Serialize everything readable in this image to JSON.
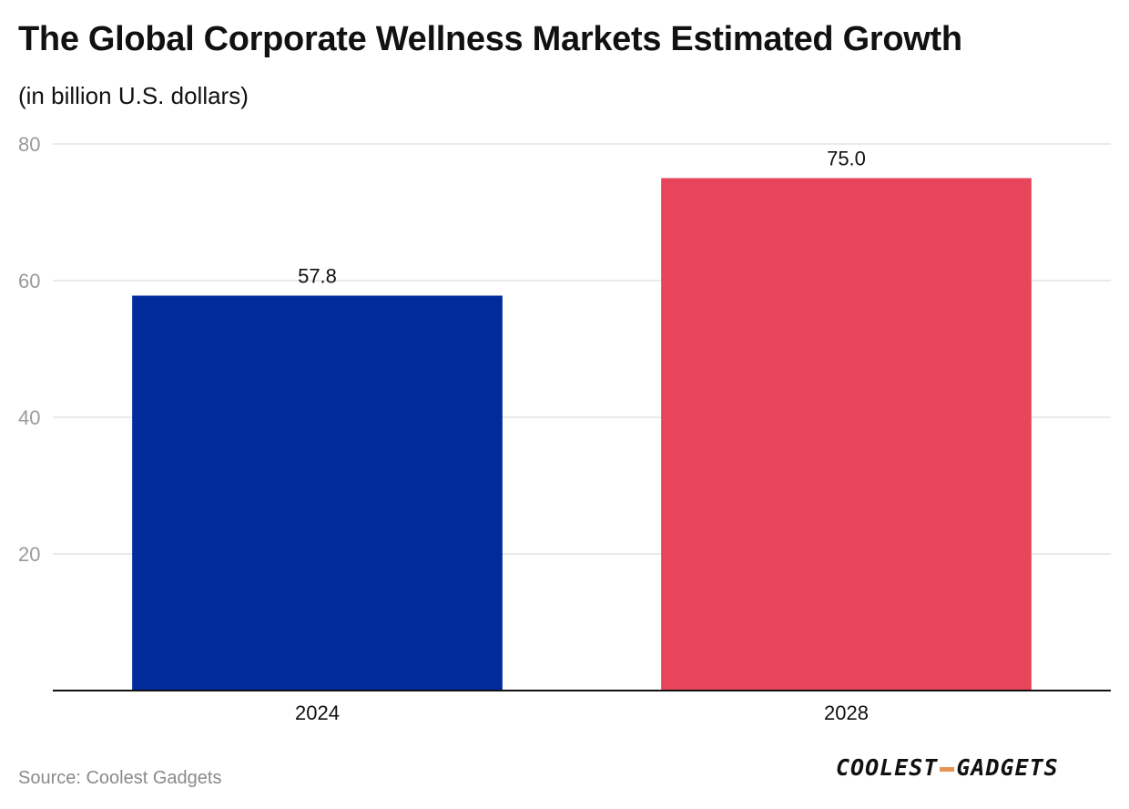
{
  "header": {
    "title": "The Global Corporate Wellness Markets Estimated Growth",
    "subtitle": "(in billion U.S. dollars)"
  },
  "footer": {
    "source": "Source: Coolest Gadgets",
    "logo_part1": "COOLEST",
    "logo_part2": "GADGETS"
  },
  "colors": {
    "bar_2024": "#022b9c",
    "bar_2028": "#e8445a",
    "grid": "#e3e3e3",
    "axis": "#111111",
    "tick_label": "#9a9a9a",
    "logo_dash": "#e8934f"
  },
  "chart_data": {
    "type": "bar",
    "title": "The Global Corporate Wellness Markets Estimated Growth",
    "subtitle": "(in billion U.S. dollars)",
    "categories": [
      "2024",
      "2028"
    ],
    "values": [
      57.8,
      75.0
    ],
    "data_labels": [
      "57.8",
      "75.0"
    ],
    "bar_colors": [
      "#022b9c",
      "#e8445a"
    ],
    "xlabel": "",
    "ylabel": "",
    "ylim": [
      0,
      80
    ],
    "yticks": [
      20,
      40,
      60,
      80
    ],
    "ytick_labels": [
      "20",
      "40",
      "60",
      "80"
    ],
    "grid": true,
    "legend": "none"
  }
}
